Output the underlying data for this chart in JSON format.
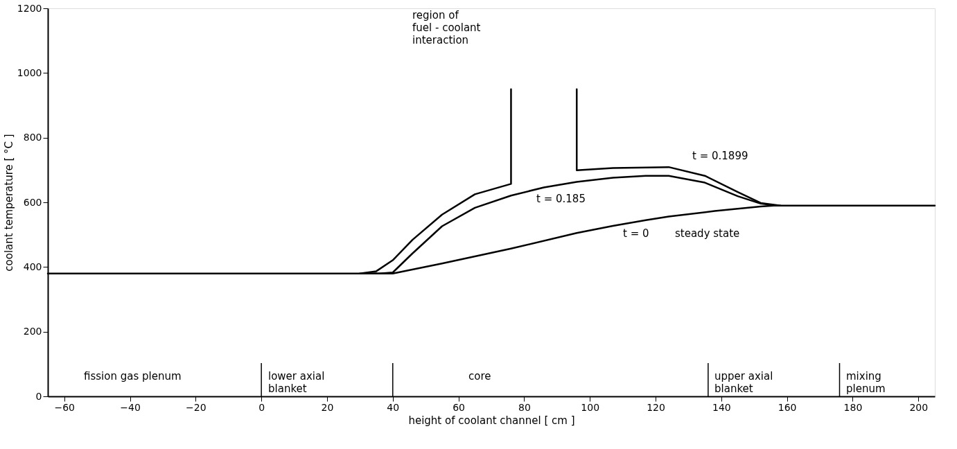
{
  "chart_data": {
    "type": "line",
    "xlabel": "height of coolant channel  [ cm ]",
    "ylabel": "coolant  temperature  [ °C ]",
    "xlim": [
      -65,
      205
    ],
    "xticks": [
      -60,
      -40,
      -20,
      0,
      20,
      40,
      60,
      80,
      100,
      120,
      140,
      160,
      180,
      200
    ],
    "ylim": [
      0,
      1200
    ],
    "yticks": [
      0,
      200,
      400,
      600,
      800,
      1000,
      1200
    ],
    "grid": false,
    "legend": false,
    "marker": "none",
    "line_style": "solid",
    "series": [
      {
        "name": "t = 0.1899",
        "color": "#000000",
        "x": [
          30,
          35,
          40,
          46,
          55,
          65,
          76,
          76,
          null,
          96,
          96,
          107,
          124,
          135,
          145,
          152,
          158
        ],
        "values": [
          380,
          387,
          421,
          484,
          562,
          625,
          657,
          950,
          null,
          950,
          699,
          706,
          709,
          682,
          632,
          598,
          590
        ]
      },
      {
        "name": "t = 0.185",
        "color": "#000000",
        "x": [
          33,
          36,
          40,
          46,
          55,
          65,
          76,
          86,
          96,
          107,
          117,
          124,
          135,
          145,
          152,
          157
        ],
        "values": [
          380,
          380,
          383,
          442,
          526,
          583,
          621,
          646,
          663,
          676,
          682,
          682,
          661,
          619,
          596,
          590
        ]
      },
      {
        "name": "t = 0",
        "color": "#000000",
        "x": [
          -65,
          40,
          55,
          76,
          96,
          107,
          117,
          124,
          138,
          152,
          156,
          205
        ],
        "values": [
          380,
          380,
          411,
          457,
          505,
          527,
          545,
          556,
          573,
          587,
          590,
          590
        ]
      }
    ],
    "ref_lines": [
      {
        "axis": "x",
        "value": 0,
        "color": "#000000"
      },
      {
        "axis": "x",
        "value": 40,
        "color": "#000000"
      },
      {
        "axis": "x",
        "value": 136,
        "color": "#000000"
      },
      {
        "axis": "x",
        "value": 176,
        "color": "#000000"
      }
    ],
    "annotations": [
      "region of\nfuel - coolant\ninteraction",
      "steady state",
      "fission gas plenum",
      "lower axial\nblanket",
      "core",
      "upper axial\nblanket",
      "mixing\nplenum"
    ]
  }
}
